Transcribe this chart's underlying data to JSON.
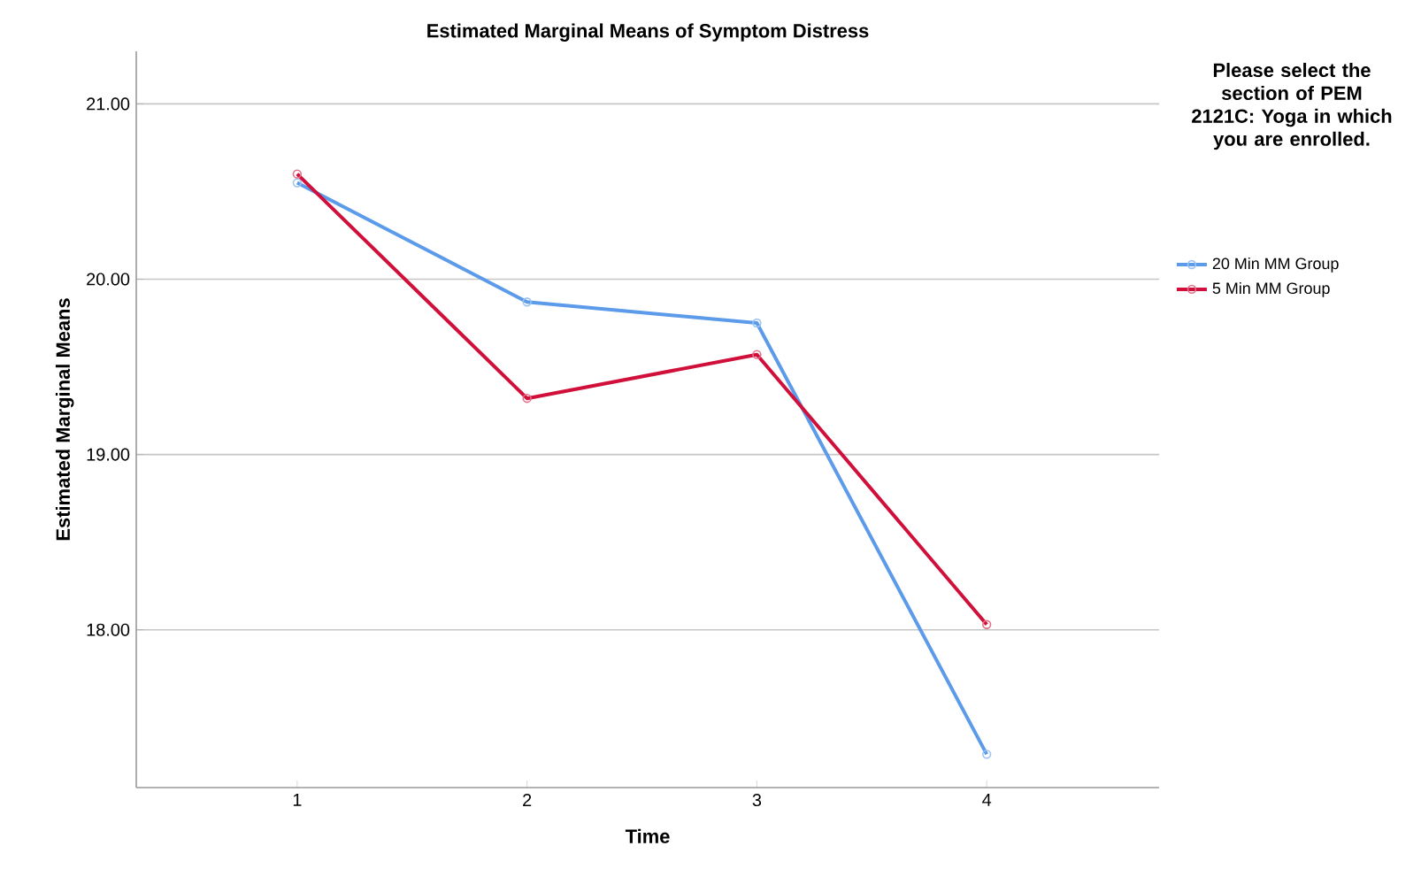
{
  "chart_data": {
    "type": "line",
    "title": "Estimated Marginal Means of Symptom Distress",
    "xlabel": "Time",
    "ylabel": "Estimated Marginal Means",
    "legend_title": "Please select the section of PEM 2121C: Yoga in which you are enrolled.",
    "categories": [
      "1",
      "2",
      "3",
      "4"
    ],
    "series": [
      {
        "name": "20 Min MM Group",
        "color": "#5b9bea",
        "values": [
          20.55,
          19.87,
          19.75,
          17.29
        ]
      },
      {
        "name": "5 Min MM Group",
        "color": "#d0103a",
        "values": [
          20.6,
          19.32,
          19.57,
          18.03
        ]
      }
    ],
    "ylim": [
      17.1,
      21.3
    ],
    "yticks": [
      {
        "value": 18,
        "label": "18.00"
      },
      {
        "value": 19,
        "label": "19.00"
      },
      {
        "value": 20,
        "label": "20.00"
      },
      {
        "value": 21,
        "label": "21.00"
      }
    ],
    "grid": "y",
    "legend": "right",
    "marker": "circle",
    "line_style": "solid"
  }
}
